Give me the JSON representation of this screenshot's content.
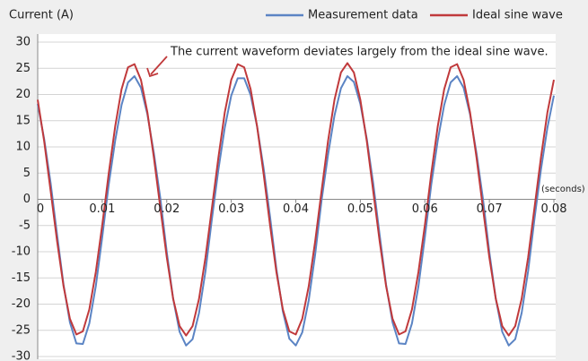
{
  "chart_data": {
    "type": "line",
    "y_axis_label": "Current (A)",
    "x_axis_label": "(seconds)",
    "annotation": "The current waveform deviates largely from the ideal sine wave.",
    "legend": "upper right",
    "grid": true,
    "xlim": [
      0,
      0.08
    ],
    "ylim": [
      -30,
      30
    ],
    "xticks": [
      0,
      0.01,
      0.02,
      0.03,
      0.04,
      0.05,
      0.06,
      0.07,
      0.08
    ],
    "yticks": [
      30,
      25,
      20,
      15,
      10,
      5,
      0,
      -5,
      -10,
      -15,
      -20,
      -25,
      -30
    ],
    "x": [
      0,
      0.001,
      0.002,
      0.003,
      0.004,
      0.005,
      0.006,
      0.007,
      0.008,
      0.009,
      0.01,
      0.011,
      0.012,
      0.013,
      0.014,
      0.015,
      0.016,
      0.017,
      0.018,
      0.019,
      0.02,
      0.021,
      0.022,
      0.023,
      0.024,
      0.025,
      0.026,
      0.027,
      0.028,
      0.029,
      0.03,
      0.031,
      0.032,
      0.033,
      0.034,
      0.035,
      0.036,
      0.037,
      0.038,
      0.039,
      0.04,
      0.041,
      0.042,
      0.043,
      0.044,
      0.045,
      0.046,
      0.047,
      0.048,
      0.049,
      0.05,
      0.051,
      0.052,
      0.053,
      0.054,
      0.055,
      0.056,
      0.057,
      0.058,
      0.059,
      0.06,
      0.061,
      0.062,
      0.063,
      0.064,
      0.065,
      0.066,
      0.067,
      0.068,
      0.069,
      0.07,
      0.071,
      0.072,
      0.073,
      0.074,
      0.075,
      0.076,
      0.077,
      0.078,
      0.079,
      0.08
    ],
    "series": [
      {
        "name": "Measurement data",
        "color": "#5b84c4",
        "values": [
          18.2,
          11.5,
          3.1,
          -6.8,
          -16.3,
          -23.5,
          -27.5,
          -27.6,
          -23.7,
          -16.6,
          -7.2,
          2.8,
          11.2,
          18.0,
          22.3,
          23.5,
          21.3,
          16.2,
          8.8,
          0.2,
          -10.1,
          -19.0,
          -25.3,
          -27.9,
          -26.7,
          -21.7,
          -13.7,
          -3.7,
          5.7,
          13.7,
          19.8,
          23.1,
          23.1,
          19.9,
          13.9,
          6.0,
          -3.3,
          -13.3,
          -21.4,
          -26.6,
          -27.9,
          -25.4,
          -19.3,
          -10.5,
          -0.2,
          8.5,
          16.0,
          21.2,
          23.5,
          22.4,
          18.2,
          11.5,
          3.1,
          -6.8,
          -16.3,
          -23.5,
          -27.5,
          -27.6,
          -23.7,
          -16.6,
          -7.2,
          2.8,
          11.2,
          18.0,
          22.3,
          23.5,
          21.3,
          16.2,
          8.8,
          0.2,
          -10.1,
          -19.0,
          -25.3,
          -27.9,
          -26.7,
          -21.7,
          -13.7,
          -3.7,
          5.7,
          13.7,
          19.8
        ]
      },
      {
        "name": "Ideal sine wave",
        "color": "#c0393b",
        "values": [
          19.0,
          11.1,
          1.6,
          -8.0,
          -16.6,
          -22.8,
          -25.8,
          -25.2,
          -21.0,
          -13.9,
          -4.9,
          4.9,
          13.9,
          21.0,
          25.2,
          25.8,
          22.8,
          16.6,
          8.0,
          -1.6,
          -11.1,
          -19.0,
          -24.2,
          -26.0,
          -24.2,
          -19.0,
          -11.1,
          -1.6,
          8.0,
          16.6,
          22.8,
          25.8,
          25.2,
          21.0,
          13.9,
          4.9,
          -4.9,
          -13.9,
          -21.0,
          -25.2,
          -25.8,
          -22.8,
          -16.6,
          -8.0,
          1.6,
          11.1,
          19.0,
          24.2,
          26.0,
          24.2,
          19.0,
          11.1,
          1.6,
          -8.0,
          -16.6,
          -22.8,
          -25.8,
          -25.2,
          -21.0,
          -13.9,
          -4.9,
          4.9,
          13.9,
          21.0,
          25.2,
          25.8,
          22.8,
          16.6,
          8.0,
          -1.6,
          -11.1,
          -19.0,
          -24.2,
          -26.0,
          -24.2,
          -19.0,
          -11.1,
          -1.6,
          8.0,
          16.6,
          22.8
        ]
      }
    ]
  }
}
